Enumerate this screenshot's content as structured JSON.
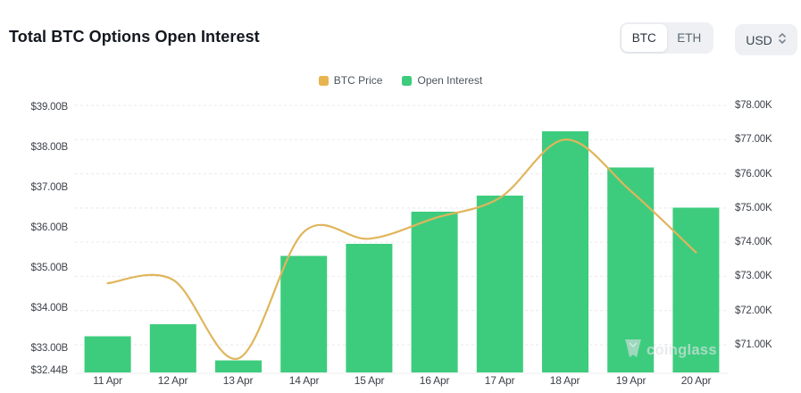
{
  "header": {
    "title": "Total BTC Options Open Interest",
    "coin_toggle": {
      "options": [
        "BTC",
        "ETH"
      ],
      "selected": "BTC"
    },
    "currency_select": {
      "value": "USD"
    }
  },
  "legend": [
    {
      "label": "BTC Price",
      "color": "#e8b44f"
    },
    {
      "label": "Open Interest",
      "color": "#3dcc7d"
    }
  ],
  "watermark": {
    "text": "coinglass"
  },
  "colors": {
    "bar": "#3dcc7d",
    "line": "#e0b55c",
    "grid": "#e9e9e9",
    "baseline": "#ededed"
  },
  "chart_data": {
    "type": "bar",
    "title": "Total BTC Options Open Interest",
    "categories": [
      "11 Apr",
      "12 Apr",
      "13 Apr",
      "14 Apr",
      "15 Apr",
      "16 Apr",
      "17 Apr",
      "18 Apr",
      "19 Apr",
      "20 Apr"
    ],
    "series": [
      {
        "name": "Open Interest",
        "type": "bar",
        "axis": "left",
        "unit": "billion USD",
        "color": "#3dcc7d",
        "values": [
          33.3,
          33.6,
          32.7,
          35.3,
          35.6,
          36.4,
          36.8,
          38.4,
          37.5,
          36.5
        ]
      },
      {
        "name": "BTC Price",
        "type": "line",
        "axis": "right",
        "unit": "thousand USD",
        "color": "#e0b55c",
        "values": [
          72.8,
          72.9,
          70.6,
          74.3,
          74.1,
          74.7,
          75.3,
          77.0,
          75.5,
          73.7
        ]
      }
    ],
    "left_axis": {
      "min": 32.44,
      "max": 39.0,
      "ticks": [
        {
          "label": "$39.00B",
          "value": 39.0
        },
        {
          "label": "$38.00B",
          "value": 38.0
        },
        {
          "label": "$37.00B",
          "value": 37.0
        },
        {
          "label": "$36.00B",
          "value": 36.0
        },
        {
          "label": "$35.00B",
          "value": 35.0
        },
        {
          "label": "$34.00B",
          "value": 34.0
        },
        {
          "label": "$33.00B",
          "value": 33.0
        },
        {
          "label": "$32.44B",
          "value": 32.44
        }
      ]
    },
    "right_axis": {
      "min": 71.0,
      "max": 78.0,
      "ticks": [
        {
          "label": "$78.00K",
          "value": 78.0
        },
        {
          "label": "$77.00K",
          "value": 77.0
        },
        {
          "label": "$76.00K",
          "value": 76.0
        },
        {
          "label": "$75.00K",
          "value": 75.0
        },
        {
          "label": "$74.00K",
          "value": 74.0
        },
        {
          "label": "$73.00K",
          "value": 73.0
        },
        {
          "label": "$72.00K",
          "value": 72.0
        },
        {
          "label": "$71.00K",
          "value": 71.0
        }
      ]
    },
    "grid": "horizontal-dashed",
    "legend_position": "top-center"
  }
}
